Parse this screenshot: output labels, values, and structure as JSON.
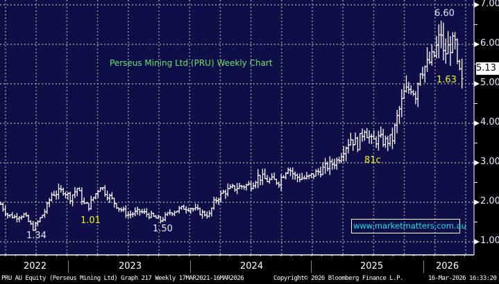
{
  "colors": {
    "background": "#0f0f48",
    "grid": "#9a9a9a",
    "price": "#ffffff",
    "title": "#6fe06f",
    "yellow": "#f2f21a",
    "watermark": "#1fe0e8"
  },
  "chart_data": {
    "type": "bar-ohlc",
    "title": "Perseus Mining Ltd (PRU) Weekly Chart",
    "ylim": [
      0.7,
      7.2
    ],
    "yticks": [
      "7.00",
      "6.00",
      "5.00",
      "4.00",
      "3.00",
      "2.00",
      "1.00"
    ],
    "ytick_values": [
      7,
      6,
      5,
      4,
      3,
      2,
      1
    ],
    "xticks": [
      "2022",
      "2023",
      "2024",
      "2025",
      "2026"
    ],
    "last_price": "5.13",
    "weeks_per_year": 52,
    "points": [
      [
        0,
        1.95
      ],
      [
        3,
        1.68
      ],
      [
        6,
        1.63
      ],
      [
        10,
        1.68
      ],
      [
        13,
        1.42
      ],
      [
        14,
        1.34
      ],
      [
        16,
        1.5
      ],
      [
        19,
        1.77
      ],
      [
        22,
        2.2
      ],
      [
        27,
        2.3
      ],
      [
        30,
        2.12
      ],
      [
        33,
        2.35
      ],
      [
        36,
        1.95
      ],
      [
        38,
        1.9
      ],
      [
        40,
        2.12
      ],
      [
        43,
        2.42
      ],
      [
        46,
        2.2
      ],
      [
        51,
        1.86
      ],
      [
        55,
        1.68
      ],
      [
        60,
        1.77
      ],
      [
        64,
        1.68
      ],
      [
        69,
        1.54
      ],
      [
        73,
        1.74
      ],
      [
        79,
        1.86
      ],
      [
        82,
        1.86
      ],
      [
        87,
        1.72
      ],
      [
        90,
        1.68
      ],
      [
        92,
        2.0
      ],
      [
        96,
        2.25
      ],
      [
        100,
        2.35
      ],
      [
        105,
        2.42
      ],
      [
        108,
        2.44
      ],
      [
        111,
        2.65
      ],
      [
        115,
        2.56
      ],
      [
        120,
        2.53
      ],
      [
        124,
        2.9
      ],
      [
        127,
        2.65
      ],
      [
        132,
        2.6
      ],
      [
        136,
        2.74
      ],
      [
        141,
        2.91
      ],
      [
        145,
        3.05
      ],
      [
        148,
        3.35
      ],
      [
        151,
        3.61
      ],
      [
        154,
        3.47
      ],
      [
        157,
        3.88
      ],
      [
        160,
        3.53
      ],
      [
        163,
        3.61
      ],
      [
        166,
        3.53
      ],
      [
        169,
        3.61
      ],
      [
        171,
        4.14
      ],
      [
        174,
        4.75
      ],
      [
        177,
        4.93
      ],
      [
        179,
        4.75
      ],
      [
        181,
        5.37
      ],
      [
        184,
        5.46
      ],
      [
        187,
        5.72
      ],
      [
        190,
        6.3
      ],
      [
        191,
        5.72
      ],
      [
        194,
        5.98
      ],
      [
        196,
        5.98
      ],
      [
        197,
        5.37
      ],
      [
        199,
        5.13
      ]
    ],
    "annotations": [
      {
        "text": "6.60",
        "color": "white",
        "price": 6.6
      },
      {
        "text": "1.63",
        "color": "yellow"
      },
      {
        "text": "81c",
        "color": "yellow"
      },
      {
        "text": "1.34",
        "color": "white"
      },
      {
        "text": "1.01",
        "color": "yellow"
      },
      {
        "text": "1.50",
        "color": "white"
      }
    ]
  },
  "watermark": "www.marketmatters.com.au",
  "footer": {
    "left": "PRU AU Equity (Perseus Mining Ltd) Graph 217 Weekly 17MAR2021-16MAR2026",
    "center": "Copyright© 2026 Bloomberg Finance L.P.",
    "right": "16-Mar-2026 16:33:20"
  }
}
